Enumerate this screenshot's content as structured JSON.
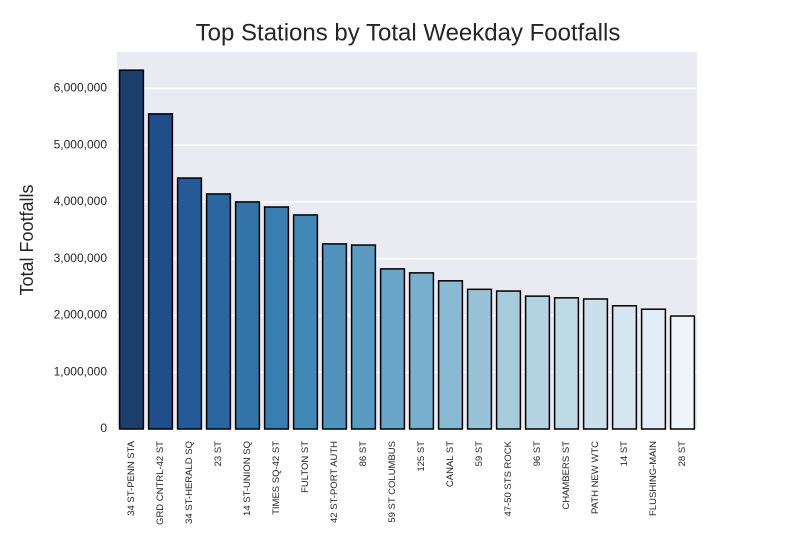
{
  "chart_data": {
    "type": "bar",
    "title": "Top Stations by Total Weekday Footfalls",
    "y_label": "Total Footfalls",
    "categories": [
      "34 ST-PENN STA",
      "GRD CNTRL-42 ST",
      "34 ST-HERALD SQ",
      "23 ST",
      "14 ST-UNION SQ",
      "TIMES SQ-42 ST",
      "FULTON ST",
      "42 ST-PORT AUTH",
      "86 ST",
      "59 ST COLUMBUS",
      "125 ST",
      "CANAL ST",
      "59 ST",
      "47-50 STS ROCK",
      "96 ST",
      "CHAMBERS ST",
      "PATH NEW WTC",
      "14 ST",
      "FLUSHING-MAIN",
      "28 ST"
    ],
    "values": [
      6320000,
      5550000,
      4420000,
      4140000,
      4000000,
      3910000,
      3770000,
      3260000,
      3240000,
      2820000,
      2750000,
      2610000,
      2460000,
      2430000,
      2340000,
      2310000,
      2290000,
      2170000,
      2110000,
      1990000
    ],
    "colors": [
      "#1c3f6e",
      "#1f4e8a",
      "#245b96",
      "#2a66a0",
      "#3373a8",
      "#3a7db0",
      "#4387b6",
      "#5193bc",
      "#5b9bc1",
      "#69a5c8",
      "#78afcd",
      "#89bad4",
      "#98c2d8",
      "#a6cbdd",
      "#b3d3e2",
      "#bfdae7",
      "#cadfeb",
      "#d6e6f1",
      "#e2edf6",
      "#f0f5fb"
    ],
    "ylim": [
      0,
      6640000
    ],
    "yticks": [
      0,
      {
        "value": 1000000,
        "label": "1,000,000"
      },
      {
        "value": 2000000,
        "label": "2,000,000"
      },
      {
        "value": 3000000,
        "label": "3,000,000"
      },
      {
        "value": 4000000,
        "label": "4,000,000"
      },
      {
        "value": 5000000,
        "label": "5,000,000"
      },
      {
        "value": 6000000,
        "label": "6,000,000"
      }
    ],
    "grid": true
  }
}
